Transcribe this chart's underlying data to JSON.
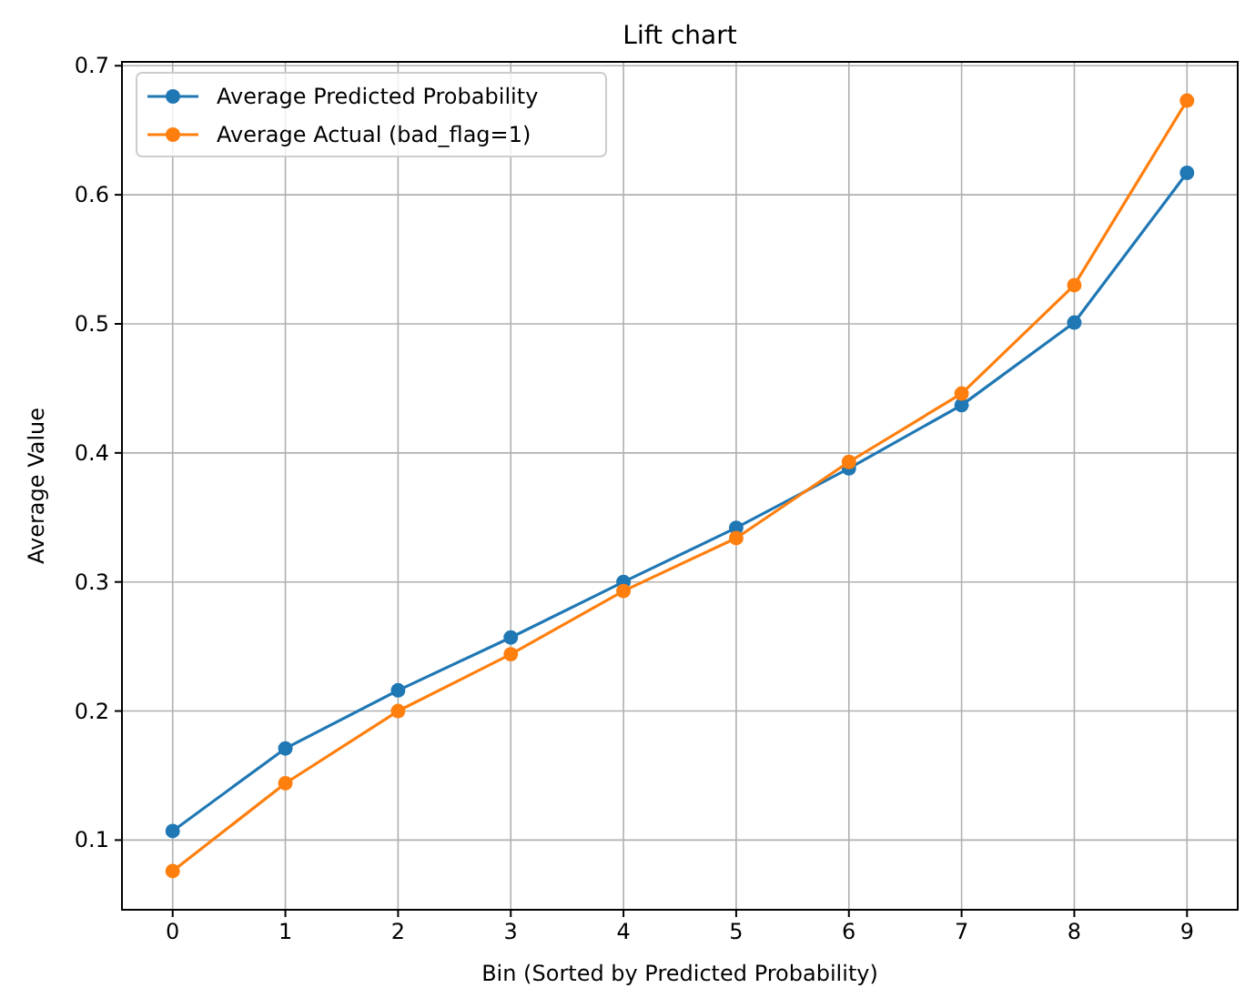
{
  "chart_data": {
    "type": "line",
    "title": "Lift chart",
    "xlabel": "Bin (Sorted by Predicted Probability)",
    "ylabel": "Average Value",
    "x": [
      0,
      1,
      2,
      3,
      4,
      5,
      6,
      7,
      8,
      9
    ],
    "series": [
      {
        "name": "Average Predicted Probability",
        "color": "#1f77b4",
        "values": [
          0.107,
          0.171,
          0.216,
          0.257,
          0.3,
          0.342,
          0.388,
          0.437,
          0.501,
          0.617
        ]
      },
      {
        "name": "Average Actual (bad_flag=1)",
        "color": "#ff7f0e",
        "values": [
          0.076,
          0.144,
          0.2,
          0.244,
          0.293,
          0.334,
          0.393,
          0.446,
          0.53,
          0.673
        ]
      }
    ],
    "xlim": [
      -0.45,
      9.45
    ],
    "xticks": [
      0,
      1,
      2,
      3,
      4,
      5,
      6,
      7,
      8,
      9
    ],
    "ylim": [
      0.046,
      0.703
    ],
    "yticks": [
      0.1,
      0.2,
      0.3,
      0.4,
      0.5,
      0.6,
      0.7
    ],
    "grid": true,
    "legend": "top left",
    "marker": "circle",
    "line_style": "solid"
  }
}
